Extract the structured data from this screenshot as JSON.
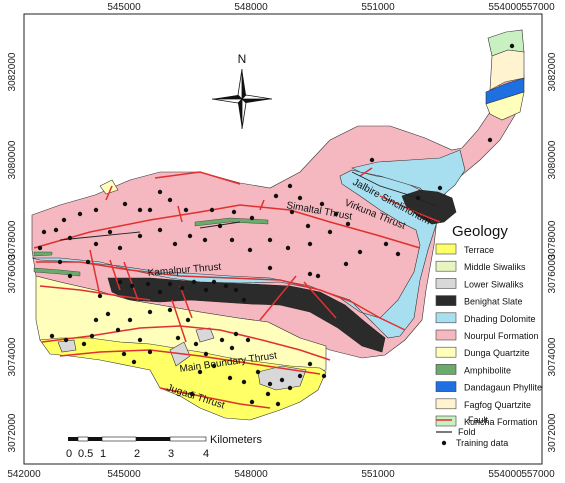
{
  "north_label": "N",
  "axis_x_top": [
    "545000",
    "548000",
    "551000",
    "554000",
    "557000"
  ],
  "axis_x_bottom": [
    "542000",
    "545000",
    "548000",
    "551000",
    "554000",
    "557000"
  ],
  "axis_y_left": [
    "3082000",
    "3080000",
    "3078000",
    "3076000",
    "3074000",
    "3072000"
  ],
  "axis_y_right": [
    "3082000",
    "3080000",
    "3078000",
    "3076000",
    "3074000",
    "3072000"
  ],
  "thrusts": {
    "jalbire": "Jalbire Sinclinorium",
    "virkuna": "Virkuna Thrust",
    "simaltal": "Simaltal Thrust",
    "kamalpur": "Kamalpur Thrust",
    "main_boundary": "Main Boundary Thrust",
    "jugadi": "Jugadi Thrust"
  },
  "legend": {
    "title": "Geology",
    "items": [
      {
        "label": "Terrace",
        "color": "#ffff66"
      },
      {
        "label": "Middle Siwaliks",
        "color": "#e8f5c0"
      },
      {
        "label": "Lower Siwaliks",
        "color": "#d8d8d8"
      },
      {
        "label": "Benighat Slate",
        "color": "#2b2b2b"
      },
      {
        "label": "Dhading Dolomite",
        "color": "#a8dff0"
      },
      {
        "label": "Nourpul Formation",
        "color": "#f6b8c0"
      },
      {
        "label": "Dunga Quartzite",
        "color": "#ffffbb"
      },
      {
        "label": "Amphibolite",
        "color": "#6aaa6a"
      },
      {
        "label": "Dandagaun Phyllite",
        "color": "#1e6fe0"
      },
      {
        "label": "Fagfog Quartzite",
        "color": "#fff3d0"
      },
      {
        "label": "Kuncha Formation",
        "color": "#c8f0c0"
      }
    ],
    "fault": "Fault",
    "fold": "Fold",
    "training": "Training data"
  },
  "scale": {
    "labels": [
      "0",
      "0.5",
      "1",
      "2",
      "3",
      "4"
    ],
    "unit": "Kilometers"
  }
}
